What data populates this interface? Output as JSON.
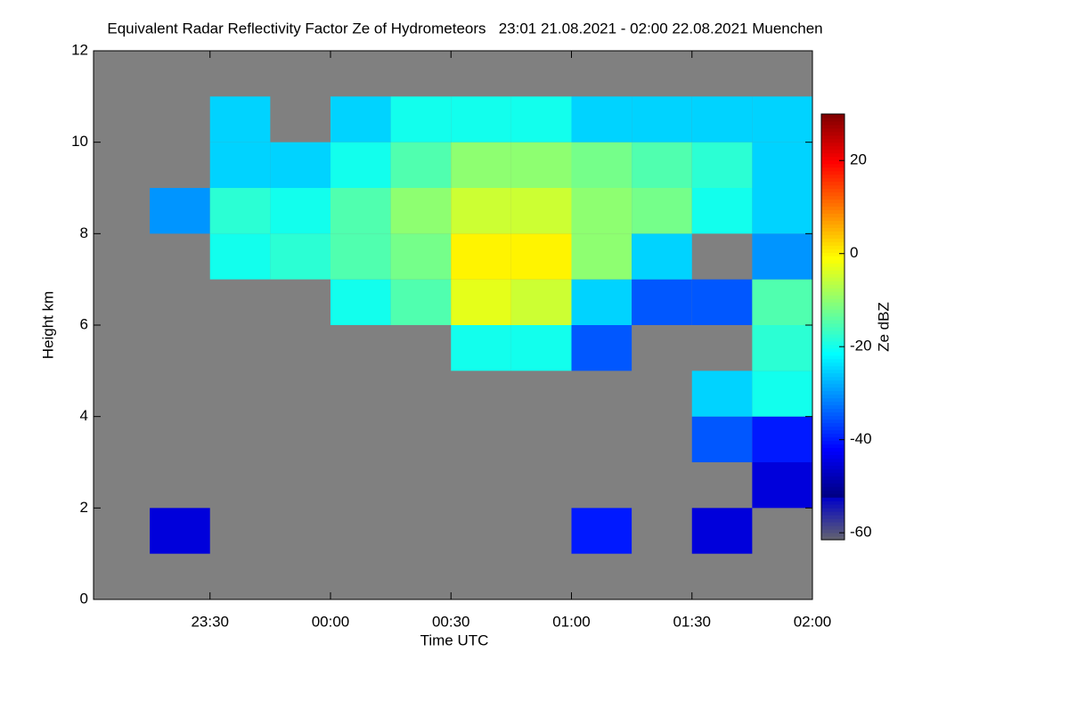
{
  "chart_data": {
    "type": "heatmap",
    "title": "Equivalent Radar Reflectivity Factor Ze of Hydrometeors   23:01 21.08.2021 - 02:00 22.08.2021 Muenchen",
    "x_label": "Time UTC",
    "y_label": "Height km",
    "colorbar_label": "Ze dBZ",
    "xlim": [
      23.0167,
      26
    ],
    "xticks": [
      {
        "value": 23.5,
        "label": "23:30"
      },
      {
        "value": 24,
        "label": "00:00"
      },
      {
        "value": 24.5,
        "label": "00:30"
      },
      {
        "value": 25,
        "label": "01:00"
      },
      {
        "value": 25.5,
        "label": "01:30"
      },
      {
        "value": 26,
        "label": "02:00"
      }
    ],
    "ylim": [
      0,
      12
    ],
    "yticks": [
      0,
      2,
      4,
      6,
      8,
      10,
      12
    ],
    "zlim": [
      -61.5,
      30
    ],
    "zticks": [
      -60,
      -40,
      -20,
      0,
      20
    ],
    "colormap": "jet",
    "background_color": "#808080",
    "x_edges": [
      23.0167,
      23.25,
      23.5,
      23.75,
      24,
      24.25,
      24.5,
      24.75,
      25,
      25.25,
      25.5,
      25.75,
      26
    ],
    "y_edges": [
      0,
      1,
      2,
      3,
      4,
      5,
      6,
      7,
      8,
      9,
      10,
      11,
      12
    ],
    "z": [
      [
        null,
        null,
        null,
        null,
        null,
        null,
        null,
        null,
        null,
        null,
        null,
        null
      ],
      [
        null,
        -45,
        null,
        null,
        null,
        null,
        null,
        null,
        -40,
        null,
        -45,
        null
      ],
      [
        null,
        null,
        null,
        null,
        null,
        null,
        null,
        null,
        null,
        null,
        null,
        -45
      ],
      [
        null,
        null,
        null,
        null,
        null,
        null,
        null,
        null,
        null,
        null,
        -35,
        -40
      ],
      [
        null,
        null,
        null,
        null,
        null,
        null,
        null,
        null,
        null,
        null,
        -25,
        -20
      ],
      [
        null,
        null,
        null,
        null,
        null,
        null,
        -20,
        -20,
        -35,
        null,
        null,
        -18
      ],
      [
        null,
        null,
        null,
        null,
        -20,
        -15,
        -3,
        -5,
        -25,
        -35,
        -35,
        -15
      ],
      [
        null,
        null,
        -20,
        -18,
        -15,
        -12,
        0,
        0,
        -10,
        -25,
        null,
        -30
      ],
      [
        null,
        -30,
        -18,
        -20,
        -15,
        -10,
        -5,
        -5,
        -10,
        -12,
        -20,
        -25
      ],
      [
        null,
        null,
        -25,
        -25,
        -20,
        -15,
        -10,
        -10,
        -12,
        -15,
        -18,
        -25
      ],
      [
        null,
        null,
        -25,
        null,
        -25,
        -20,
        -20,
        -20,
        -25,
        -25,
        -25,
        -25
      ],
      [
        null,
        null,
        null,
        null,
        null,
        null,
        null,
        null,
        null,
        null,
        null,
        null
      ]
    ]
  }
}
